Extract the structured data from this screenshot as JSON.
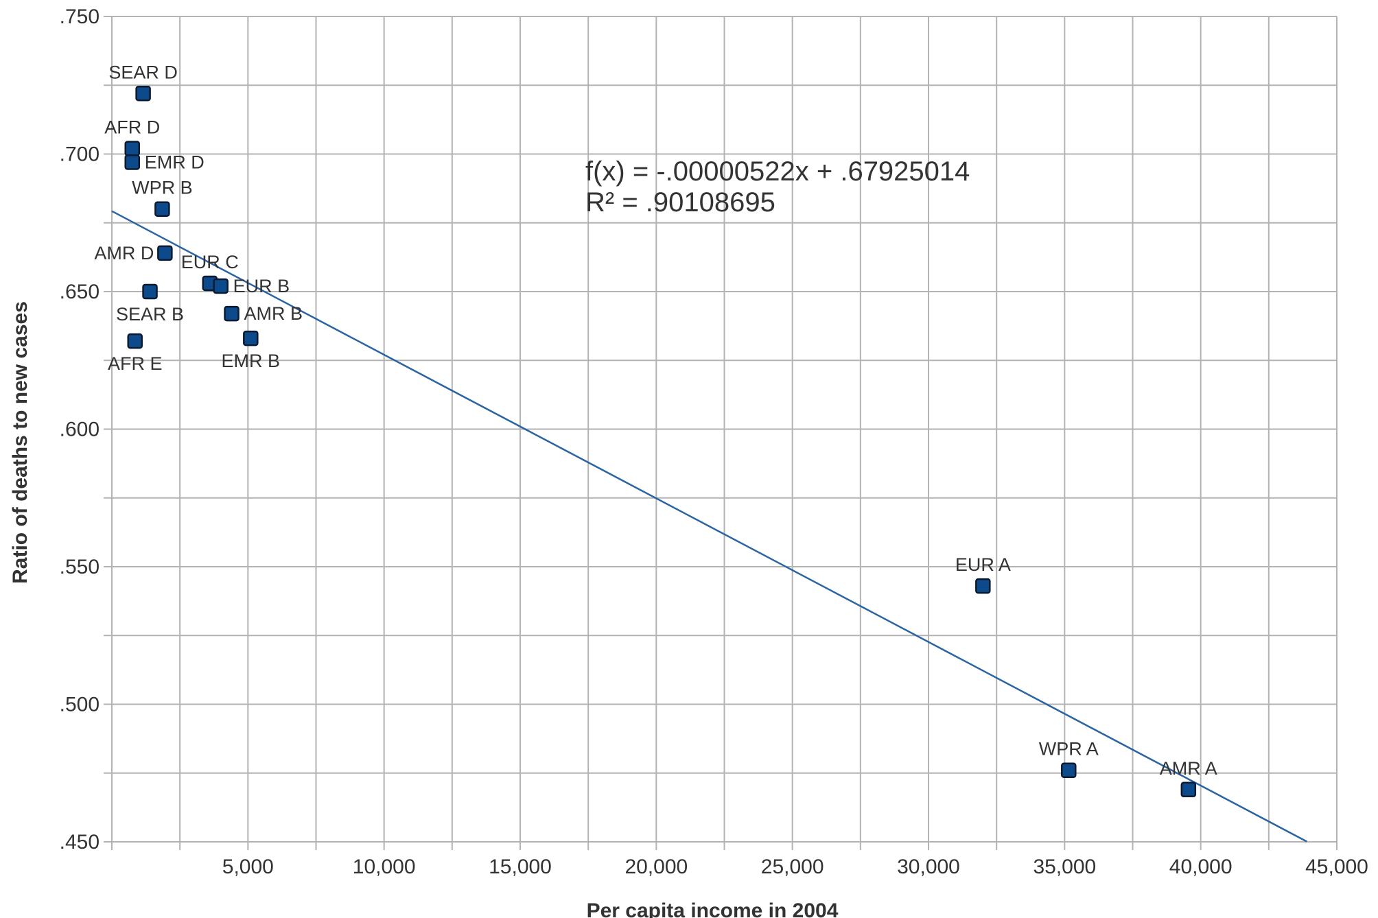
{
  "chart_data": {
    "type": "scatter",
    "xlabel": "Per capita income in 2004",
    "ylabel": "Ratio of deaths to new cases",
    "xlim": [
      0,
      45000
    ],
    "ylim": [
      0.45,
      0.75
    ],
    "x_ticks": [
      5000,
      10000,
      15000,
      20000,
      25000,
      30000,
      35000,
      40000,
      45000
    ],
    "x_tick_labels": [
      "5,000",
      "10,000",
      "15,000",
      "20,000",
      "25,000",
      "30,000",
      "35,000",
      "40,000",
      "45,000"
    ],
    "y_ticks": [
      0.45,
      0.5,
      0.55,
      0.6,
      0.65,
      0.7,
      0.75
    ],
    "y_tick_labels": [
      ".450",
      ".500",
      ".550",
      ".600",
      ".650",
      ".700",
      ".750"
    ],
    "grid": true,
    "legend": "none",
    "points": [
      {
        "label": "SEAR D",
        "x": 1150,
        "y": 0.722,
        "label_pos": "above"
      },
      {
        "label": "AFR D",
        "x": 750,
        "y": 0.702,
        "label_pos": "above"
      },
      {
        "label": "EMR D",
        "x": 750,
        "y": 0.697,
        "label_pos": "right"
      },
      {
        "label": "WPR B",
        "x": 1850,
        "y": 0.68,
        "label_pos": "above"
      },
      {
        "label": "AMR D",
        "x": 1950,
        "y": 0.664,
        "label_pos": "left"
      },
      {
        "label": "SEAR B",
        "x": 1400,
        "y": 0.65,
        "label_pos": "below"
      },
      {
        "label": "AFR E",
        "x": 850,
        "y": 0.632,
        "label_pos": "below"
      },
      {
        "label": "EUR C",
        "x": 3600,
        "y": 0.653,
        "label_pos": "above"
      },
      {
        "label": "EUR B",
        "x": 4000,
        "y": 0.652,
        "label_pos": "right"
      },
      {
        "label": "AMR B",
        "x": 4400,
        "y": 0.642,
        "label_pos": "right"
      },
      {
        "label": "EMR B",
        "x": 5100,
        "y": 0.633,
        "label_pos": "below"
      },
      {
        "label": "EUR A",
        "x": 32000,
        "y": 0.543,
        "label_pos": "above"
      },
      {
        "label": "WPR A",
        "x": 35150,
        "y": 0.476,
        "label_pos": "above"
      },
      {
        "label": "AMR A",
        "x": 39550,
        "y": 0.469,
        "label_pos": "above"
      }
    ],
    "trendline": {
      "slope": -5.22e-06,
      "intercept": 0.67925014,
      "x_range": [
        0,
        43900
      ],
      "equation": "f(x) = -.00000522x + .67925014",
      "r_squared": "R² = .90108695"
    },
    "colors": {
      "marker_fill": "#0c4a8c",
      "marker_stroke": "#0b1a2e",
      "trendline": "#2a64a3",
      "grid": "#b3b3b3"
    }
  }
}
